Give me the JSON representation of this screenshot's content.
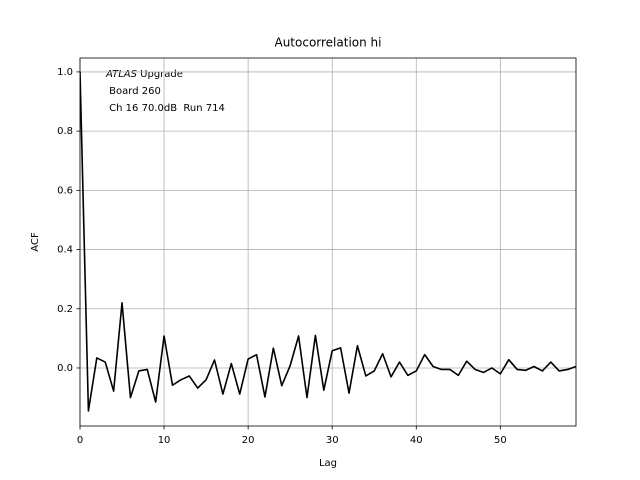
{
  "chart_data": {
    "type": "line",
    "title": "Autocorrelation hi",
    "x_label": "Lag",
    "y_label": "ACF",
    "annotation_italic": "ATLAS",
    "annotation": [
      " Upgrade",
      " Board 260",
      " Ch 16 70.0dB  Run 714"
    ],
    "x": [
      0,
      1,
      2,
      3,
      4,
      5,
      6,
      7,
      8,
      9,
      10,
      11,
      12,
      13,
      14,
      15,
      16,
      17,
      18,
      19,
      20,
      21,
      22,
      23,
      24,
      25,
      26,
      27,
      28,
      29,
      30,
      31,
      32,
      33,
      34,
      35,
      36,
      37,
      38,
      39,
      40,
      41,
      42,
      43,
      44,
      45,
      46,
      47,
      48,
      49,
      50,
      51,
      52,
      53,
      54,
      55,
      56,
      57,
      58,
      59
    ],
    "series": [
      {
        "color": "#000000",
        "values": [
          1.0,
          -0.145,
          0.034,
          0.02,
          -0.078,
          0.22,
          -0.1,
          -0.01,
          -0.005,
          -0.115,
          0.108,
          -0.058,
          -0.04,
          -0.027,
          -0.068,
          -0.04,
          0.027,
          -0.088,
          0.015,
          -0.088,
          0.03,
          0.045,
          -0.098,
          0.067,
          -0.06,
          0.008,
          0.108,
          -0.1,
          0.11,
          -0.075,
          0.058,
          0.068,
          -0.085,
          0.075,
          -0.027,
          -0.01,
          0.048,
          -0.03,
          0.02,
          -0.025,
          -0.01,
          0.045,
          0.005,
          -0.005,
          -0.005,
          -0.025,
          0.023,
          -0.005,
          -0.015,
          0,
          -0.02,
          0.028,
          -0.005,
          -0.008,
          0.005,
          -0.01,
          0.02,
          -0.01,
          -0.005,
          0.005
        ]
      }
    ],
    "xlim": [
      0,
      59
    ],
    "ylim": [
      -0.196,
      1.047
    ],
    "xticks": [
      0,
      10,
      20,
      30,
      40,
      50
    ],
    "yticks": [
      {
        "value": 0,
        "label": "0.0"
      },
      {
        "value": 0.2,
        "label": "0.2"
      },
      {
        "value": 0.4,
        "label": "0.4"
      },
      {
        "value": 0.6,
        "label": "0.6"
      },
      {
        "value": 0.8,
        "label": "0.8"
      },
      {
        "value": 1,
        "label": "1.0"
      }
    ],
    "grid": true
  }
}
